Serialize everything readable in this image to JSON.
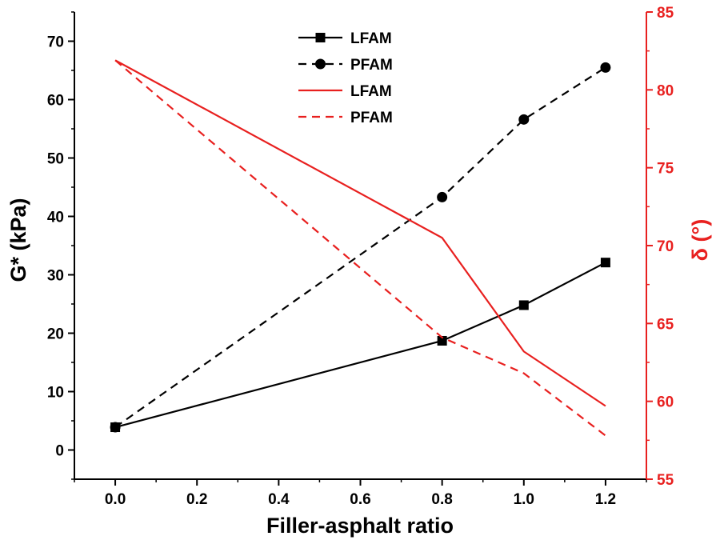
{
  "chart_data": {
    "type": "line",
    "title": "",
    "xlabel": "Filler-asphalt ratio",
    "ylabel_left": "G* (kPa)",
    "ylabel_right": "δ (°)",
    "x_ticks": [
      "0.0",
      "0.2",
      "0.4",
      "0.6",
      "0.8",
      "1.0",
      "1.2"
    ],
    "y_left_ticks": [
      "0",
      "10",
      "20",
      "30",
      "40",
      "50",
      "60",
      "70"
    ],
    "y_right_ticks": [
      "55",
      "60",
      "65",
      "70",
      "75",
      "80",
      "85"
    ],
    "xlim": [
      -0.1,
      1.3
    ],
    "ylim_left": [
      -5,
      75
    ],
    "ylim_right": [
      55,
      85
    ],
    "legend_position": "top-center",
    "colors": {
      "left_axis": "#000000",
      "right_axis": "#e8201f"
    },
    "series": [
      {
        "name": "LFAM",
        "axis": "left",
        "color": "#000000",
        "style": "solid",
        "marker": "square",
        "x": [
          0.0,
          0.8,
          1.0,
          1.2
        ],
        "values": [
          3.9,
          18.7,
          24.8,
          32.1
        ]
      },
      {
        "name": "PFAM",
        "axis": "left",
        "color": "#000000",
        "style": "dashed",
        "marker": "circle",
        "x": [
          0.0,
          0.8,
          1.0,
          1.2
        ],
        "values": [
          3.9,
          43.3,
          56.6,
          65.5
        ]
      },
      {
        "name": "LFAM",
        "axis": "right",
        "color": "#e8201f",
        "style": "solid",
        "marker": "none",
        "x": [
          0.0,
          0.8,
          1.0,
          1.2
        ],
        "values": [
          81.9,
          70.5,
          63.2,
          59.7
        ]
      },
      {
        "name": "PFAM",
        "axis": "right",
        "color": "#e8201f",
        "style": "dashed",
        "marker": "none",
        "x": [
          0.0,
          0.8,
          1.0,
          1.2
        ],
        "values": [
          81.9,
          64.1,
          61.8,
          57.8
        ]
      }
    ]
  }
}
